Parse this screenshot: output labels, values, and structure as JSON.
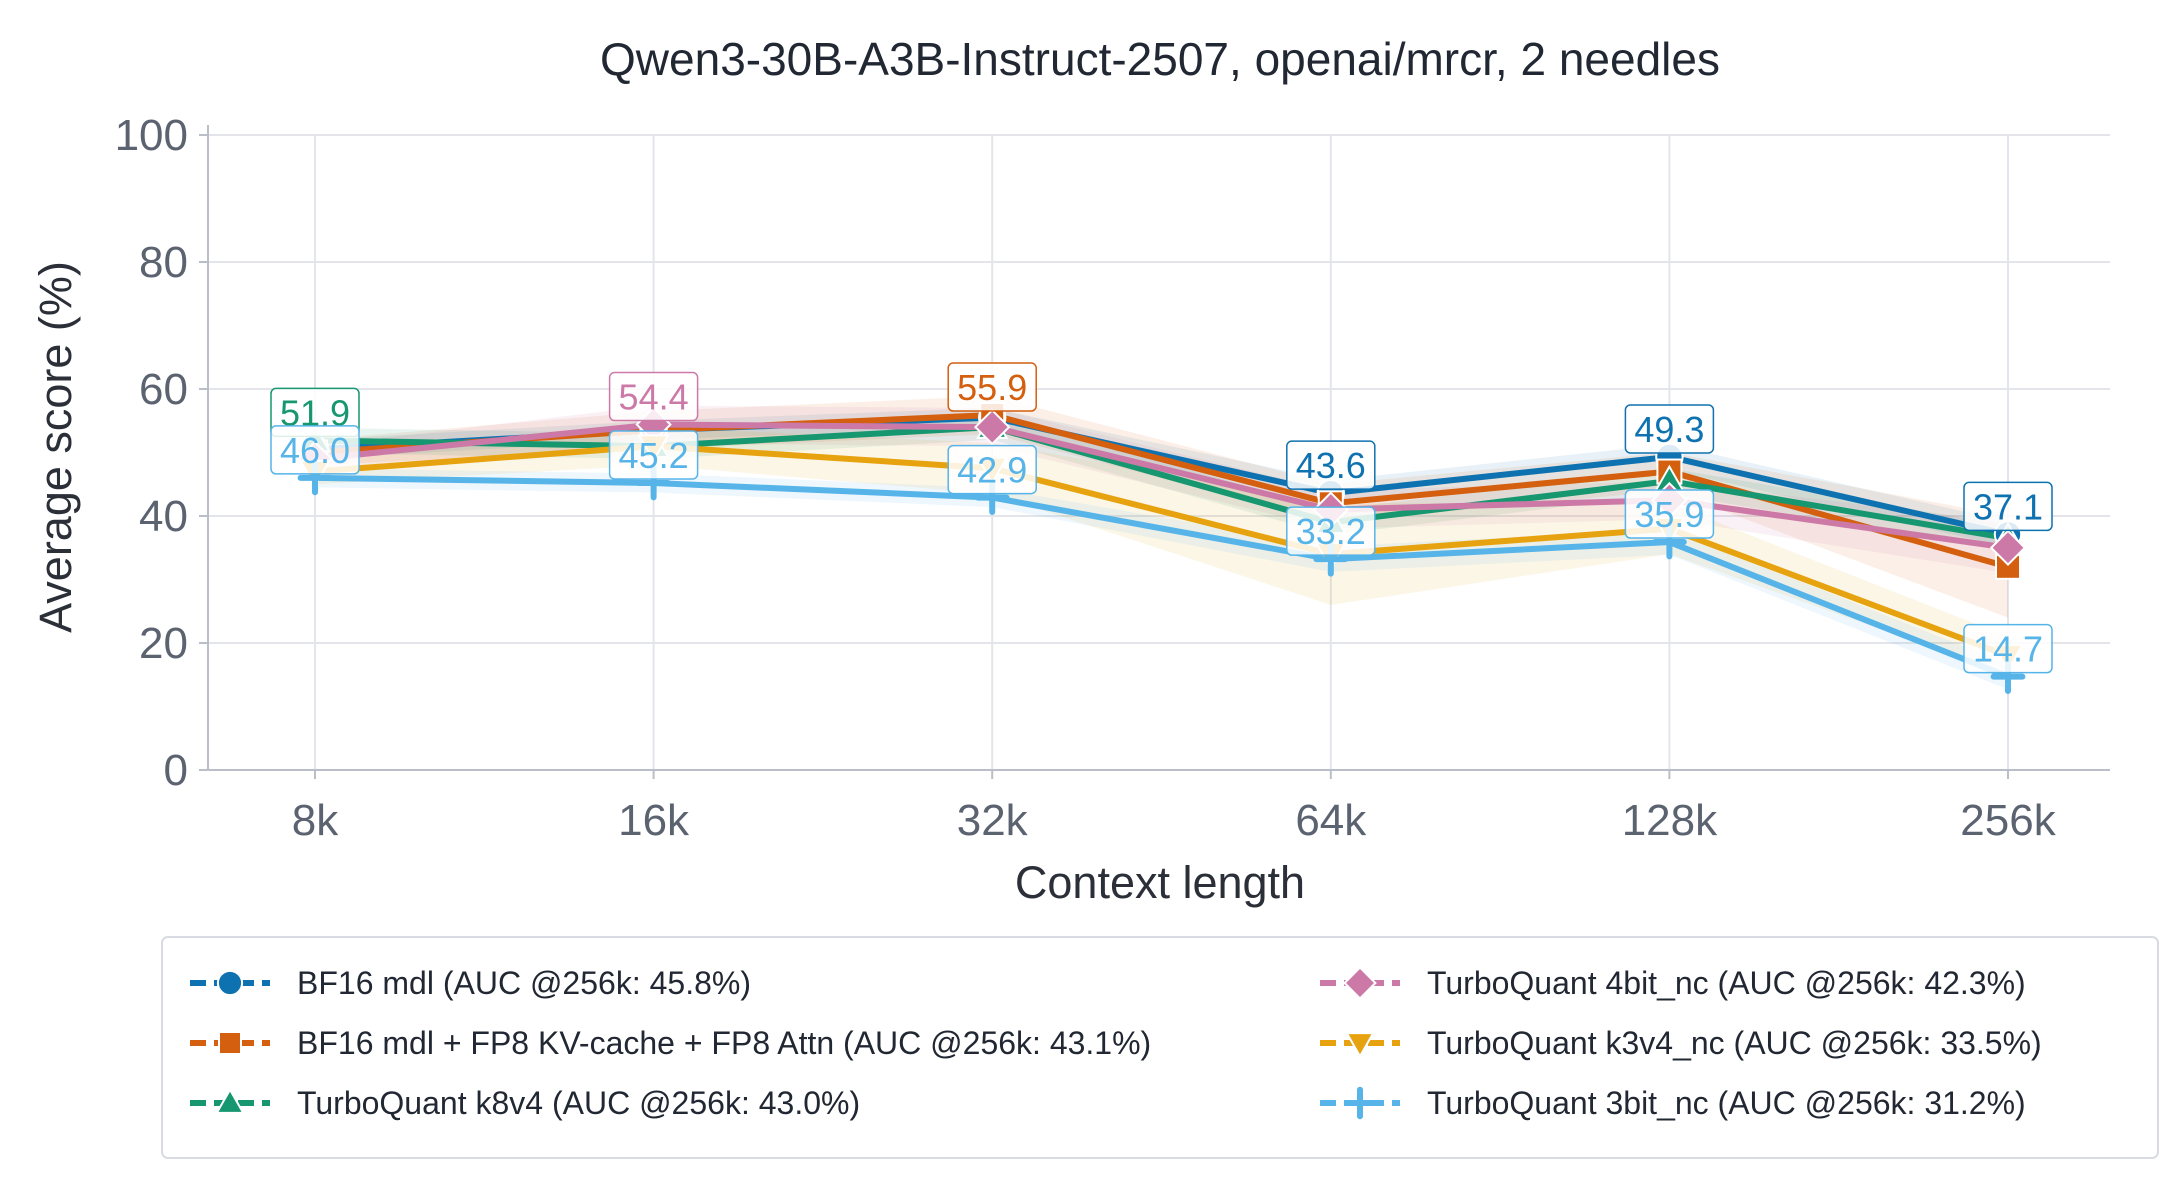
{
  "chart_data": {
    "type": "line",
    "title": "Qwen3-30B-A3B-Instruct-2507, openai/mrcr, 2 needles",
    "xlabel": "Context length",
    "ylabel": "Average score (%)",
    "categories": [
      "8k",
      "16k",
      "32k",
      "64k",
      "128k",
      "256k"
    ],
    "ylim": [
      0,
      100
    ],
    "yticks": [
      0,
      20,
      40,
      60,
      80,
      100
    ],
    "grid": true,
    "legend_position": "bottom",
    "series": [
      {
        "name": "BF16 mdl  (AUC @256k: 45.8%)",
        "color": "#0f72b0",
        "marker": "circle",
        "values": [
          50.5,
          53.5,
          55.5,
          43.6,
          49.3,
          37.1
        ],
        "band": [
          1.5,
          1.5,
          1.5,
          2,
          2,
          2
        ],
        "labels": [
          null,
          null,
          null,
          "43.6",
          "49.3",
          "37.1"
        ]
      },
      {
        "name": "BF16 mdl + FP8 KV-cache + FP8 Attn  (AUC @256k: 43.1%)",
        "color": "#d35f0f",
        "marker": "square",
        "values": [
          50,
          53.5,
          55.9,
          42,
          47,
          32
        ],
        "band": [
          2,
          3,
          3,
          3,
          3,
          8
        ],
        "labels": [
          null,
          null,
          "55.9",
          null,
          null,
          null
        ]
      },
      {
        "name": "TurboQuant k8v4  (AUC @256k: 43.0%)",
        "color": "#16976f",
        "marker": "triangle-up",
        "values": [
          51.9,
          51,
          54,
          39,
          45.5,
          36.5
        ],
        "band": [
          2,
          2,
          2,
          2,
          2,
          2
        ],
        "labels": [
          "51.9",
          null,
          null,
          null,
          null,
          null
        ]
      },
      {
        "name": "TurboQuant 4bit_nc  (AUC @256k: 42.3%)",
        "color": "#cc79a7",
        "marker": "diamond",
        "values": [
          49,
          54.4,
          54,
          41,
          42.5,
          35
        ],
        "band": [
          2,
          3,
          3,
          3,
          3,
          4
        ],
        "labels": [
          null,
          "54.4",
          null,
          null,
          null,
          null
        ]
      },
      {
        "name": "TurboQuant k3v4_nc  (AUC @256k: 33.5%)",
        "color": "#e6a20f",
        "marker": "triangle-down",
        "values": [
          47,
          51,
          47.5,
          34,
          38,
          18
        ],
        "band": [
          2,
          3,
          4,
          8,
          4,
          3
        ],
        "labels": [
          null,
          null,
          null,
          null,
          null,
          null
        ]
      },
      {
        "name": "TurboQuant 3bit_nc  (AUC @256k: 31.2%)",
        "color": "#56b4e9",
        "marker": "plus",
        "values": [
          46.0,
          45.2,
          42.9,
          33.2,
          35.9,
          14.7
        ],
        "band": [
          1.5,
          1.5,
          1.5,
          2,
          2,
          2
        ],
        "labels": [
          "46.0",
          "45.2",
          "42.9",
          "33.2",
          "35.9",
          "14.7"
        ]
      }
    ]
  }
}
